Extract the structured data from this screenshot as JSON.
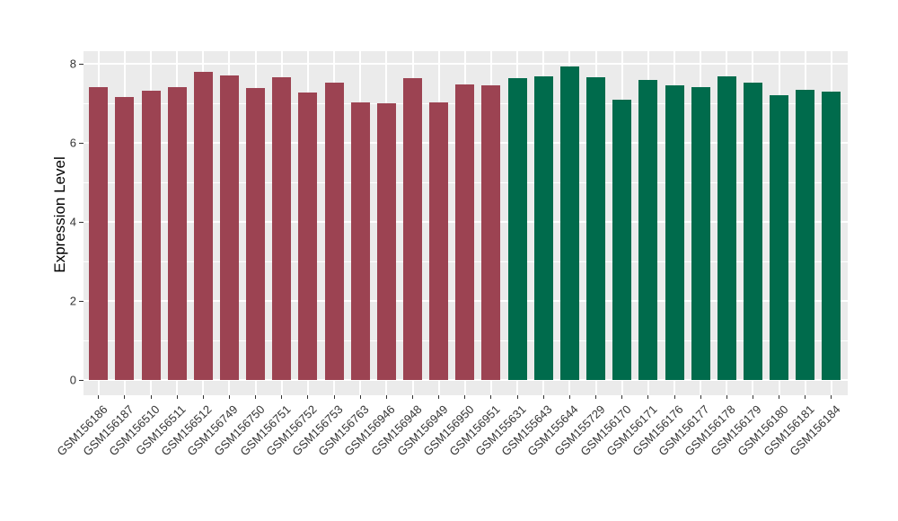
{
  "chart_data": {
    "type": "bar",
    "title": "",
    "xlabel": "",
    "ylabel": "Expression Level",
    "ylim": [
      0,
      8.3
    ],
    "yticks": [
      0,
      2,
      4,
      6,
      8
    ],
    "minor_gridlines": [
      1,
      3,
      5,
      7
    ],
    "grid": "on",
    "legend_position": "none",
    "panel_bg": "#EBEBEB",
    "gridline_color": "#FFFFFF",
    "tick_color": "#333333",
    "axis_text_color": "#333333",
    "group_colors": {
      "maroon": "#9C4352",
      "green": "#006B4C"
    },
    "bars": [
      {
        "label": "GSM156186",
        "value": 7.4,
        "group": "maroon"
      },
      {
        "label": "GSM156187",
        "value": 7.15,
        "group": "maroon"
      },
      {
        "label": "GSM156510",
        "value": 7.32,
        "group": "maroon"
      },
      {
        "label": "GSM156511",
        "value": 7.42,
        "group": "maroon"
      },
      {
        "label": "GSM156512",
        "value": 7.8,
        "group": "maroon"
      },
      {
        "label": "GSM156749",
        "value": 7.7,
        "group": "maroon"
      },
      {
        "label": "GSM156750",
        "value": 7.38,
        "group": "maroon"
      },
      {
        "label": "GSM156751",
        "value": 7.67,
        "group": "maroon"
      },
      {
        "label": "GSM156752",
        "value": 7.27,
        "group": "maroon"
      },
      {
        "label": "GSM156753",
        "value": 7.53,
        "group": "maroon"
      },
      {
        "label": "GSM156763",
        "value": 7.02,
        "group": "maroon"
      },
      {
        "label": "GSM156946",
        "value": 7.0,
        "group": "maroon"
      },
      {
        "label": "GSM156948",
        "value": 7.64,
        "group": "maroon"
      },
      {
        "label": "GSM156949",
        "value": 7.03,
        "group": "maroon"
      },
      {
        "label": "GSM156950",
        "value": 7.47,
        "group": "maroon"
      },
      {
        "label": "GSM156951",
        "value": 7.46,
        "group": "maroon"
      },
      {
        "label": "GSM155631",
        "value": 7.64,
        "group": "green"
      },
      {
        "label": "GSM155643",
        "value": 7.68,
        "group": "green"
      },
      {
        "label": "GSM155644",
        "value": 7.94,
        "group": "green"
      },
      {
        "label": "GSM155729",
        "value": 7.65,
        "group": "green"
      },
      {
        "label": "GSM156170",
        "value": 7.08,
        "group": "green"
      },
      {
        "label": "GSM156171",
        "value": 7.58,
        "group": "green"
      },
      {
        "label": "GSM156176",
        "value": 7.45,
        "group": "green"
      },
      {
        "label": "GSM156177",
        "value": 7.42,
        "group": "green"
      },
      {
        "label": "GSM156178",
        "value": 7.68,
        "group": "green"
      },
      {
        "label": "GSM156179",
        "value": 7.52,
        "group": "green"
      },
      {
        "label": "GSM156180",
        "value": 7.2,
        "group": "green"
      },
      {
        "label": "GSM156181",
        "value": 7.35,
        "group": "green"
      },
      {
        "label": "GSM156184",
        "value": 7.3,
        "group": "green"
      }
    ]
  }
}
